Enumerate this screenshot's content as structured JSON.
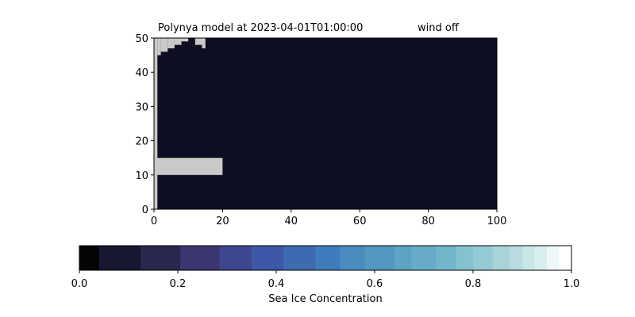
{
  "chart_data": [
    {
      "type": "heatmap",
      "title": "Polynya model at 2023-04-01T01:00:00",
      "title_right": "wind off",
      "xlabel": "",
      "ylabel": "",
      "xlim": [
        0,
        100
      ],
      "ylim": [
        0,
        50
      ],
      "xticks": [
        "0",
        "20",
        "40",
        "60",
        "80",
        "100"
      ],
      "yticks": [
        "0",
        "10",
        "20",
        "30",
        "40",
        "50"
      ],
      "grid": false,
      "background_value": 0.03,
      "land_color": "#c9c9c9",
      "water_color": "#0e0e22",
      "land_cells": [
        {
          "x": [
            0,
            1
          ],
          "y": [
            0,
            50
          ]
        },
        {
          "x": [
            0,
            20
          ],
          "y": [
            10,
            15
          ]
        },
        {
          "x": [
            1,
            2
          ],
          "y": [
            45,
            50
          ]
        },
        {
          "x": [
            2,
            4
          ],
          "y": [
            46,
            50
          ]
        },
        {
          "x": [
            4,
            6
          ],
          "y": [
            47,
            50
          ]
        },
        {
          "x": [
            6,
            8
          ],
          "y": [
            48,
            50
          ]
        },
        {
          "x": [
            8,
            10
          ],
          "y": [
            49,
            50
          ]
        },
        {
          "x": [
            12,
            14
          ],
          "y": [
            48,
            50
          ]
        },
        {
          "x": [
            14,
            15
          ],
          "y": [
            47,
            50
          ]
        }
      ]
    },
    {
      "type": "colorbar",
      "label": "Sea Ice Concentration",
      "range": [
        0.0,
        1.0
      ],
      "ticks": [
        "0.0",
        "0.2",
        "0.4",
        "0.6",
        "0.8",
        "1.0"
      ],
      "boundaries": [
        0,
        0.04,
        0.125,
        0.205,
        0.285,
        0.35,
        0.415,
        0.48,
        0.53,
        0.58,
        0.64,
        0.675,
        0.725,
        0.765,
        0.8,
        0.84,
        0.875,
        0.9,
        0.925,
        0.95,
        0.975,
        1.0
      ],
      "colors": [
        "#040406",
        "#171730",
        "#29284e",
        "#3a3770",
        "#3f4690",
        "#3d58a6",
        "#3e6bb0",
        "#3f7cbb",
        "#4a8cc0",
        "#5299c1",
        "#5ca3c4",
        "#66acc8",
        "#72b6cc",
        "#84c2d0",
        "#95cad4",
        "#a8d3d9",
        "#b8dcdf",
        "#c8e6e6",
        "#d9eeee",
        "#eef8f8",
        "#ffffff"
      ]
    }
  ]
}
